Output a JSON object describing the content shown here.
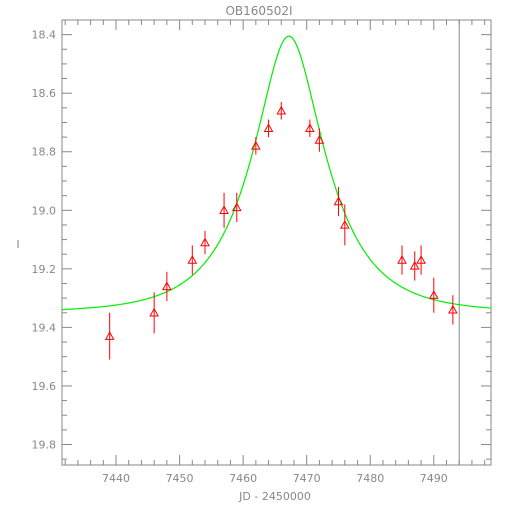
{
  "chart_data": {
    "type": "scatter",
    "title": "OB160502I",
    "xlabel": "JD - 2450000",
    "ylabel": "I",
    "xlim": [
      7431.5,
      7499
    ],
    "ylim": [
      19.87,
      18.35
    ],
    "y_inverted": true,
    "x_ticks": [
      7440,
      7450,
      7460,
      7470,
      7480,
      7490
    ],
    "x_tick_labels": [
      "7440",
      "7450",
      "7460",
      "7470",
      "7480",
      "7490"
    ],
    "y_ticks": [
      18.4,
      18.6,
      18.8,
      19.0,
      19.2,
      19.4,
      19.6,
      19.8
    ],
    "y_tick_labels": [
      "18.4",
      "18.6",
      "18.8",
      "19.0",
      "19.2",
      "19.4",
      "19.6",
      "19.8"
    ],
    "x_minor_step": 2,
    "y_minor_step": 0.05,
    "vertical_line_x": 7494,
    "series": [
      {
        "marker": "triangle",
        "color": "#ff0000",
        "points": [
          {
            "x": 7439,
            "y": 19.43,
            "err": 0.08
          },
          {
            "x": 7446,
            "y": 19.35,
            "err": 0.07
          },
          {
            "x": 7448,
            "y": 19.26,
            "err": 0.05
          },
          {
            "x": 7452,
            "y": 19.17,
            "err": 0.05
          },
          {
            "x": 7454,
            "y": 19.11,
            "err": 0.04
          },
          {
            "x": 7457,
            "y": 19.0,
            "err": 0.06
          },
          {
            "x": 7459,
            "y": 18.99,
            "err": 0.05
          },
          {
            "x": 7462,
            "y": 18.78,
            "err": 0.03
          },
          {
            "x": 7464,
            "y": 18.72,
            "err": 0.03
          },
          {
            "x": 7466,
            "y": 18.66,
            "err": 0.03
          },
          {
            "x": 7470.5,
            "y": 18.72,
            "err": 0.03
          },
          {
            "x": 7472,
            "y": 18.76,
            "err": 0.04
          },
          {
            "x": 7475,
            "y": 18.97,
            "err": 0.05
          },
          {
            "x": 7476,
            "y": 19.05,
            "err": 0.07
          },
          {
            "x": 7485,
            "y": 19.17,
            "err": 0.05
          },
          {
            "x": 7487,
            "y": 19.19,
            "err": 0.05
          },
          {
            "x": 7488,
            "y": 19.17,
            "err": 0.05
          },
          {
            "x": 7490,
            "y": 19.29,
            "err": 0.06
          },
          {
            "x": 7493,
            "y": 19.34,
            "err": 0.05
          }
        ]
      },
      {
        "type": "line",
        "color": "#00ee00",
        "model": {
          "t0": 7467.2,
          "tE": 10.3,
          "u0": 0.45,
          "base": 19.35
        }
      }
    ]
  }
}
